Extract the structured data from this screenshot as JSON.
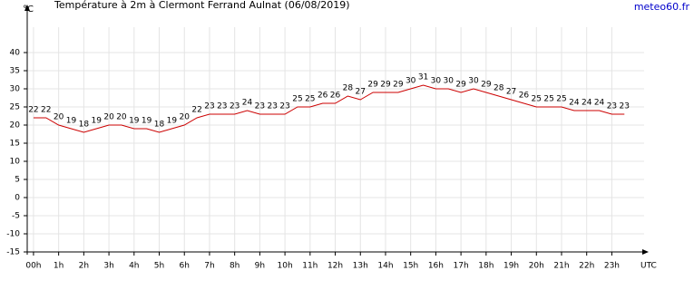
{
  "chart_data": {
    "type": "line",
    "title": "Température à 2m à Clermont Ferrand Aulnat (06/08/2019)",
    "y_label": "°C",
    "x_label": "UTC",
    "source": "meteo60.fr",
    "x": [
      0,
      0.5,
      1,
      1.5,
      2,
      2.5,
      3,
      3.5,
      4,
      4.5,
      5,
      5.5,
      6,
      6.5,
      7,
      7.5,
      8,
      8.5,
      9,
      9.5,
      10,
      10.5,
      11,
      11.5,
      12,
      12.5,
      13,
      13.5,
      14,
      14.5,
      15,
      15.5,
      16,
      16.5,
      17,
      17.5,
      18,
      18.5,
      19,
      19.5,
      20,
      20.5,
      21,
      21.5,
      22,
      22.5,
      23,
      23.5
    ],
    "series": [
      {
        "name": "Température",
        "color": "#cc0000",
        "values": [
          22,
          22,
          20,
          19,
          18,
          19,
          20,
          20,
          19,
          19,
          18,
          19,
          20,
          22,
          23,
          23,
          23,
          24,
          23,
          23,
          23,
          25,
          25,
          26,
          26,
          28,
          27,
          29,
          29,
          29,
          30,
          31,
          30,
          30,
          29,
          30,
          29,
          28,
          27,
          26,
          25,
          25,
          25,
          24,
          24,
          24,
          23,
          23
        ]
      }
    ],
    "xlim": [
      -0.25,
      24.5
    ],
    "xticks": [
      {
        "value": 0,
        "label": "00h"
      },
      {
        "value": 1,
        "label": "1h"
      },
      {
        "value": 2,
        "label": "2h"
      },
      {
        "value": 3,
        "label": "3h"
      },
      {
        "value": 4,
        "label": "4h"
      },
      {
        "value": 5,
        "label": "5h"
      },
      {
        "value": 6,
        "label": "6h"
      },
      {
        "value": 7,
        "label": "7h"
      },
      {
        "value": 8,
        "label": "8h"
      },
      {
        "value": 9,
        "label": "9h"
      },
      {
        "value": 10,
        "label": "10h"
      },
      {
        "value": 11,
        "label": "11h"
      },
      {
        "value": 12,
        "label": "12h"
      },
      {
        "value": 13,
        "label": "13h"
      },
      {
        "value": 14,
        "label": "14h"
      },
      {
        "value": 15,
        "label": "15h"
      },
      {
        "value": 16,
        "label": "16h"
      },
      {
        "value": 17,
        "label": "17h"
      },
      {
        "value": 18,
        "label": "18h"
      },
      {
        "value": 19,
        "label": "19h"
      },
      {
        "value": 20,
        "label": "20h"
      },
      {
        "value": 21,
        "label": "21h"
      },
      {
        "value": 22,
        "label": "22h"
      },
      {
        "value": 23,
        "label": "23h"
      }
    ],
    "ylim": [
      -15,
      47
    ],
    "yticks": [
      -15,
      -10,
      -5,
      0,
      5,
      10,
      15,
      20,
      25,
      30,
      35,
      40
    ],
    "grid": true
  }
}
